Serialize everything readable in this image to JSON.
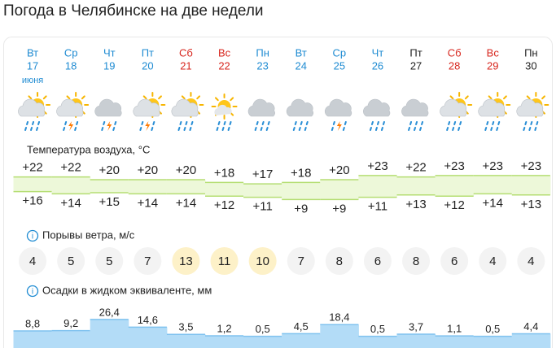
{
  "title": "Погода в Челябинске на две недели",
  "days": [
    {
      "weekday": "Вт",
      "date": "17",
      "month": "июня",
      "color": "#1e8bd2"
    },
    {
      "weekday": "Ср",
      "date": "18",
      "color": "#1e8bd2"
    },
    {
      "weekday": "Чт",
      "date": "19",
      "color": "#1e8bd2"
    },
    {
      "weekday": "Пт",
      "date": "20",
      "color": "#1e8bd2"
    },
    {
      "weekday": "Сб",
      "date": "21",
      "color": "#d7261e"
    },
    {
      "weekday": "Вс",
      "date": "22",
      "color": "#d7261e"
    },
    {
      "weekday": "Пн",
      "date": "23",
      "color": "#1e8bd2"
    },
    {
      "weekday": "Вт",
      "date": "24",
      "color": "#1e8bd2"
    },
    {
      "weekday": "Ср",
      "date": "25",
      "color": "#1e8bd2"
    },
    {
      "weekday": "Чт",
      "date": "26",
      "color": "#1e8bd2"
    },
    {
      "weekday": "Пт",
      "date": "27",
      "color": "#222222"
    },
    {
      "weekday": "Сб",
      "date": "28",
      "color": "#d7261e"
    },
    {
      "weekday": "Вс",
      "date": "29",
      "color": "#d7261e"
    },
    {
      "weekday": "Пн",
      "date": "30",
      "color": "#222222"
    }
  ],
  "temperature": {
    "label": "Температура воздуха, °C",
    "max": [
      {
        "value": 22,
        "label": "+22"
      },
      {
        "value": 22,
        "label": "+22"
      },
      {
        "value": 20,
        "label": "+20"
      },
      {
        "value": 20,
        "label": "+20"
      },
      {
        "value": 20,
        "label": "+20"
      },
      {
        "value": 18,
        "label": "+18"
      },
      {
        "value": 17,
        "label": "+17"
      },
      {
        "value": 18,
        "label": "+18"
      },
      {
        "value": 20,
        "label": "+20"
      },
      {
        "value": 23,
        "label": "+23"
      },
      {
        "value": 22,
        "label": "+22"
      },
      {
        "value": 23,
        "label": "+23"
      },
      {
        "value": 23,
        "label": "+23"
      },
      {
        "value": 23,
        "label": "+23"
      }
    ],
    "min": [
      {
        "value": 16,
        "label": "+16"
      },
      {
        "value": 14,
        "label": "+14"
      },
      {
        "value": 15,
        "label": "+15"
      },
      {
        "value": 14,
        "label": "+14"
      },
      {
        "value": 14,
        "label": "+14"
      },
      {
        "value": 12,
        "label": "+12"
      },
      {
        "value": 11,
        "label": "+11"
      },
      {
        "value": 9,
        "label": "+9"
      },
      {
        "value": 9,
        "label": "+9"
      },
      {
        "value": 11,
        "label": "+11"
      },
      {
        "value": 13,
        "label": "+13"
      },
      {
        "value": 12,
        "label": "+12"
      },
      {
        "value": 14,
        "label": "+14"
      },
      {
        "value": 13,
        "label": "+13"
      }
    ]
  },
  "wind": {
    "label": "Порывы ветра, м/с",
    "values": [
      4,
      5,
      5,
      7,
      13,
      11,
      10,
      7,
      8,
      6,
      8,
      6,
      4,
      4
    ],
    "highlight": [
      false,
      false,
      false,
      false,
      true,
      true,
      true,
      false,
      false,
      false,
      false,
      false,
      false,
      false
    ]
  },
  "precipitation": {
    "label": "Осадки в жидком эквиваленте, мм",
    "values": [
      {
        "value": 8.8,
        "label": "8,8"
      },
      {
        "value": 9.2,
        "label": "9,2"
      },
      {
        "value": 26.4,
        "label": "26,4"
      },
      {
        "value": 14.6,
        "label": "14,6"
      },
      {
        "value": 3.5,
        "label": "3,5"
      },
      {
        "value": 1.2,
        "label": "1,2"
      },
      {
        "value": 0.5,
        "label": "0,5"
      },
      {
        "value": 4.5,
        "label": "4,5"
      },
      {
        "value": 18.4,
        "label": "18,4"
      },
      {
        "value": 0.5,
        "label": "0,5"
      },
      {
        "value": 3.7,
        "label": "3,7"
      },
      {
        "value": 1.1,
        "label": "1,1"
      },
      {
        "value": 0.5,
        "label": "0,5"
      },
      {
        "value": 4.4,
        "label": "4,4"
      }
    ]
  }
}
